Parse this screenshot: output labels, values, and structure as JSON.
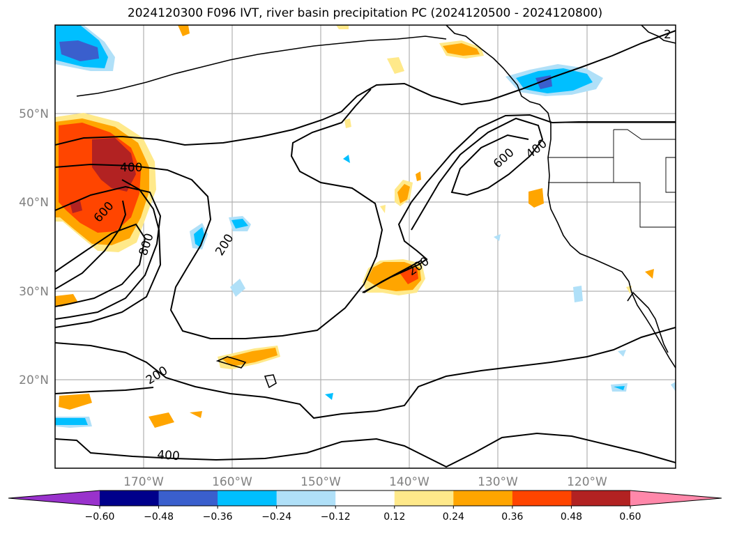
{
  "title": "2024120300 F096 IVT, river basin precipitation PC (2024120500 - 2024120800)",
  "lat_labels": [
    "50°N",
    "40°N",
    "30°N",
    "20°N"
  ],
  "lon_labels": [
    "170°W",
    "160°W",
    "150°W",
    "140°W",
    "130°W",
    "120°W"
  ],
  "contour_labels": [
    "400",
    "600",
    "800",
    "200",
    "600",
    "400",
    "200",
    "200",
    "400",
    "2"
  ],
  "colorbar": {
    "ticks": [
      "−0.60",
      "−0.48",
      "−0.36",
      "−0.24",
      "−0.12",
      "0.12",
      "0.24",
      "0.36",
      "0.48",
      "0.60"
    ],
    "colors": [
      "#9932cc",
      "#00008b",
      "#3a5fcd",
      "#00bfff",
      "#b0e0f8",
      "#ffffff",
      "#ffe98a",
      "#ffa500",
      "#ff4500",
      "#b22222",
      "#ff88aa"
    ]
  }
}
